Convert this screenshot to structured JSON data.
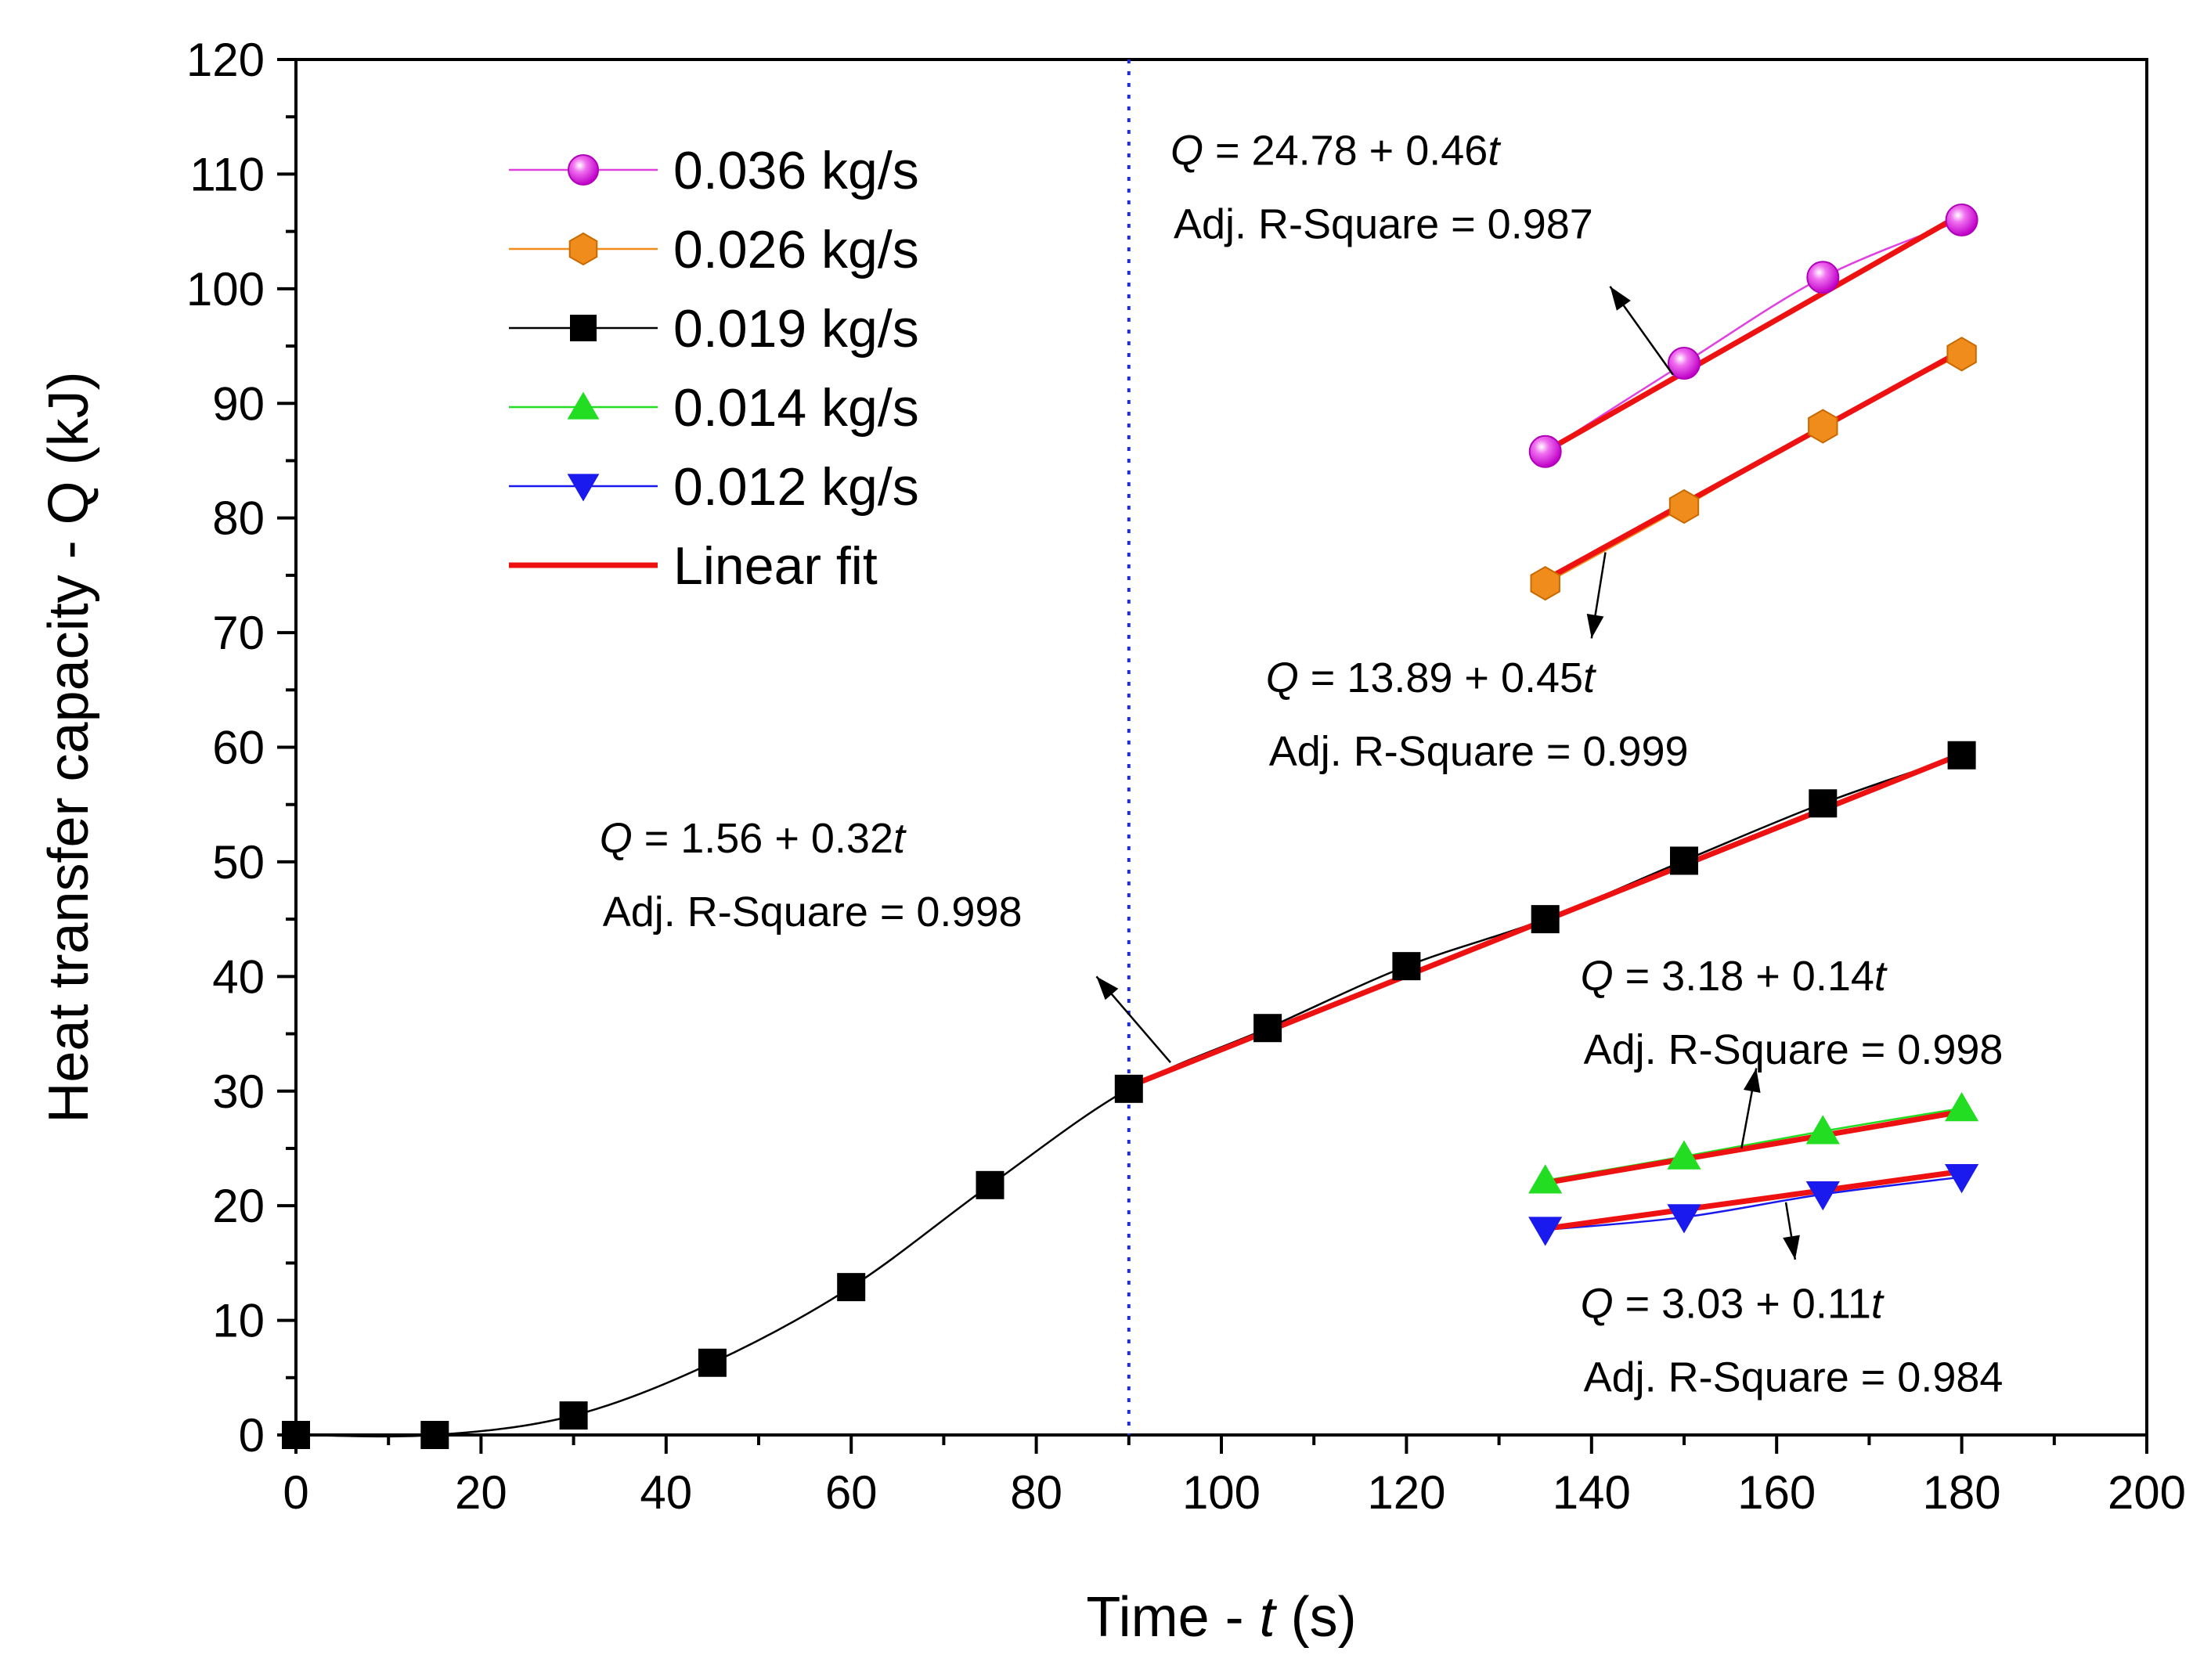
{
  "chart_data": {
    "type": "scatter",
    "title": "",
    "xlabel_prefix": "Time - ",
    "xlabel_var": "t",
    "xlabel_suffix": " (s)",
    "ylabel": "Heat transfer capacity - Q (kJ)",
    "xlim": [
      0,
      200
    ],
    "ylim": [
      0,
      120
    ],
    "xticks": [
      0,
      20,
      40,
      60,
      80,
      100,
      120,
      140,
      160,
      180,
      200
    ],
    "yticks": [
      0,
      10,
      20,
      30,
      40,
      50,
      60,
      70,
      80,
      90,
      100,
      110,
      120
    ],
    "grid": false,
    "legend_position": "top-left",
    "vertical_line": {
      "x": 90,
      "color": "#1f2fd6",
      "style": "dotted"
    },
    "series": [
      {
        "name": "0.036 kg/s",
        "marker": "sphere",
        "color": "#e020e0",
        "line_color": "#e040e0",
        "x": [
          135,
          150,
          165,
          180
        ],
        "y": [
          85.8,
          93.5,
          101.0,
          106.0
        ],
        "fit": {
          "x": [
            135,
            180
          ],
          "y": [
            85.8,
            106.5
          ]
        }
      },
      {
        "name": "0.026 kg/s",
        "marker": "hexagon",
        "color": "#f08c1c",
        "line_color": "#f08c1c",
        "x": [
          135,
          150,
          165,
          180
        ],
        "y": [
          74.3,
          81.0,
          88.0,
          94.3
        ],
        "fit": {
          "x": [
            135,
            180
          ],
          "y": [
            74.6,
            94.6
          ]
        }
      },
      {
        "name": "0.019 kg/s",
        "marker": "square",
        "color": "#000000",
        "line_color": "#000000",
        "x": [
          0,
          15,
          30,
          45,
          60,
          75,
          90,
          105,
          120,
          135,
          150,
          165,
          180
        ],
        "y": [
          0,
          0,
          1.7,
          6.3,
          12.9,
          21.8,
          30.2,
          35.5,
          40.9,
          45.0,
          50.1,
          55.1,
          59.3
        ],
        "fit": {
          "x": [
            90,
            180
          ],
          "y": [
            30.4,
            59.4
          ]
        }
      },
      {
        "name": "0.014 kg/s",
        "marker": "triangle-up",
        "color": "#22dd22",
        "line_color": "#22dd22",
        "x": [
          135,
          150,
          165,
          180
        ],
        "y": [
          22.2,
          24.3,
          26.5,
          28.5
        ],
        "fit": {
          "x": [
            135,
            180
          ],
          "y": [
            22.0,
            28.2
          ]
        }
      },
      {
        "name": "0.012 kg/s",
        "marker": "triangle-down",
        "color": "#1a1aee",
        "line_color": "#1a1aee",
        "x": [
          135,
          150,
          165,
          180
        ],
        "y": [
          17.9,
          19.0,
          21.0,
          22.5
        ],
        "fit": {
          "x": [
            135,
            180
          ],
          "y": [
            18.0,
            23.0
          ]
        }
      }
    ],
    "fit_style": {
      "name": "Linear fit",
      "color": "#ee1111"
    },
    "annotations": [
      {
        "eq_lhs": "Q",
        "eq_rhs": " = 24.78 + 0.46",
        "eq_var": "t",
        "r2": "Adj. R-Square = 0.987",
        "anchor": {
          "x": 94.5,
          "y": 110.8
        },
        "arrow_from": {
          "x": 148.8,
          "y": 92.5
        },
        "arrow_to": {
          "x": 142.0,
          "y": 100.2
        }
      },
      {
        "eq_lhs": "Q",
        "eq_rhs": " = 13.89 + 0.45",
        "eq_var": "t",
        "r2": "Adj. R-Square = 0.999",
        "anchor": {
          "x": 104.8,
          "y": 64.8
        },
        "arrow_from": {
          "x": 141.5,
          "y": 77.0
        },
        "arrow_to": {
          "x": 140.0,
          "y": 69.5
        }
      },
      {
        "eq_lhs": "Q",
        "eq_rhs": " = 1.56 + 0.32",
        "eq_var": "t",
        "r2": "Adj. R-Square = 0.998",
        "anchor": {
          "x": 32.8,
          "y": 50.8
        },
        "arrow_from": {
          "x": 94.5,
          "y": 32.5
        },
        "arrow_to": {
          "x": 86.5,
          "y": 40.0
        }
      },
      {
        "eq_lhs": "Q",
        "eq_rhs": " = 3.18 + 0.14",
        "eq_var": "t",
        "r2": "Adj. R-Square = 0.998",
        "anchor": {
          "x": 138.8,
          "y": 38.8
        },
        "arrow_from": {
          "x": 156.2,
          "y": 25.0
        },
        "arrow_to": {
          "x": 157.8,
          "y": 32.0
        }
      },
      {
        "eq_lhs": "Q",
        "eq_rhs": " = 3.03 + 0.11",
        "eq_var": "t",
        "r2": "Adj. R-Square = 0.984",
        "anchor": {
          "x": 138.8,
          "y": 10.2
        },
        "arrow_from": {
          "x": 161.0,
          "y": 20.3
        },
        "arrow_to": {
          "x": 162.0,
          "y": 15.3
        }
      }
    ]
  }
}
